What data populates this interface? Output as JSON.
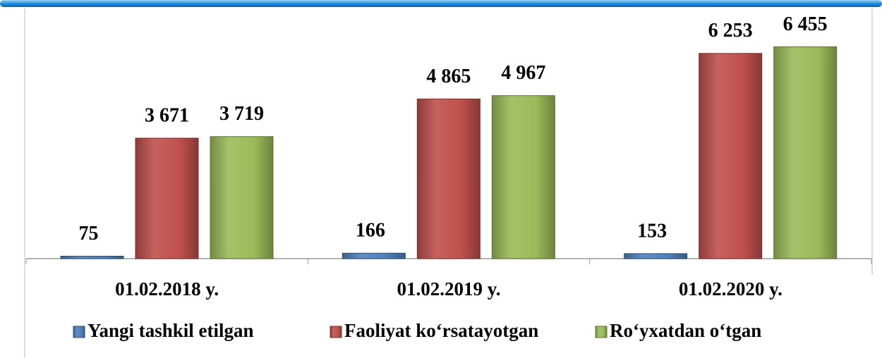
{
  "chart_data": {
    "type": "bar",
    "categories": [
      "01.02.2018 y.",
      "01.02.2019 y.",
      "01.02.2020 y."
    ],
    "series": [
      {
        "name": "Yangi tashkil etilgan",
        "color": "#4f81bd",
        "values": [
          75,
          166,
          153
        ],
        "value_labels": [
          "75",
          "166",
          "153"
        ]
      },
      {
        "name": "Faoliyat ko‘rsatayotgan",
        "color": "#c0504d",
        "values": [
          3671,
          4865,
          6253
        ],
        "value_labels": [
          "3 671",
          "4 865",
          "6 253"
        ]
      },
      {
        "name": "Ro‘yxatdan o‘tgan",
        "color": "#9bbb59",
        "values": [
          3719,
          4967,
          6455
        ],
        "value_labels": [
          "3 719",
          "4 967",
          "6 455"
        ]
      }
    ],
    "ylim": [
      0,
      7000
    ],
    "legend": "bottom"
  }
}
